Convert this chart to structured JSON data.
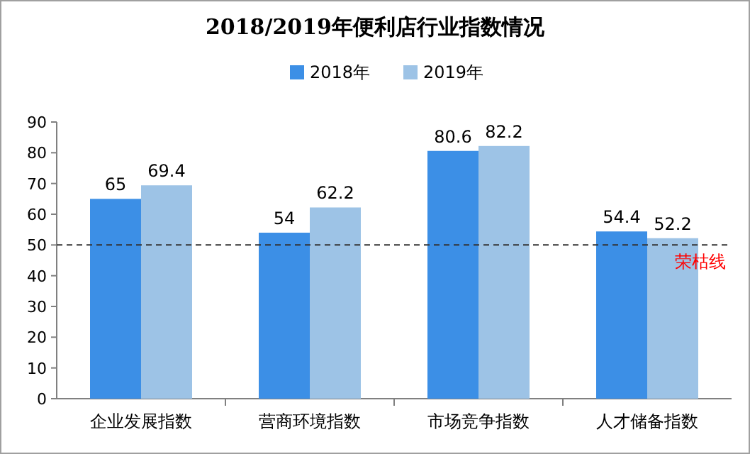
{
  "chart_data": {
    "type": "bar",
    "title": "2018/2019年便利店行业指数情况",
    "categories": [
      "企业发展指数",
      "营商环境指数",
      "市场竞争指数",
      "人才储备指数"
    ],
    "series": [
      {
        "name": "2018年",
        "color": "#3c8fe6",
        "values": [
          65,
          54,
          80.6,
          54.4
        ]
      },
      {
        "name": "2019年",
        "color": "#9dc3e6",
        "values": [
          69.4,
          62.2,
          82.2,
          52.2
        ]
      }
    ],
    "ylim": [
      0,
      90
    ],
    "yticks": [
      0,
      10,
      20,
      30,
      40,
      50,
      60,
      70,
      80,
      90
    ],
    "data_labels": true,
    "legend": "top",
    "ref_lines": [
      {
        "axis": "y",
        "value": 50,
        "label": "荣枯线",
        "color": "#333333",
        "line_style": "dashed"
      }
    ]
  }
}
